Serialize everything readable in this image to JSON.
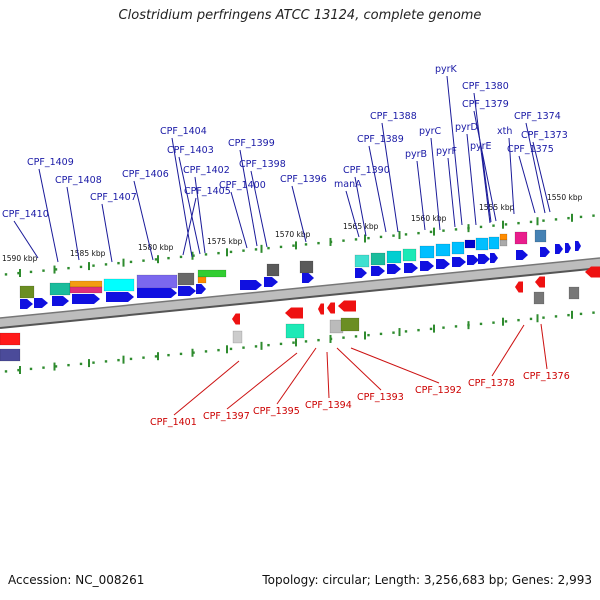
{
  "title": "Clostridium perfringens ATCC 13124, complete genome",
  "footer": {
    "accession": "Accession: NC_008261",
    "summary": "Topology: circular; Length: 3,256,683 bp; Genes: 2,993"
  },
  "colors": {
    "forward_label": "#1a1aa6",
    "reverse_label": "#cc0000",
    "backbone": "#6e6e6e",
    "tick": "#2e8b2e",
    "forward_arrow": "#1010e0",
    "reverse_arrow": "#ee1111"
  },
  "kbp_ticks": [
    "1590 kbp",
    "1585 kbp",
    "1580 kbp",
    "1575 kbp",
    "1570 kbp",
    "1565 kbp",
    "1560 kbp",
    "1555 kbp",
    "1550 kbp"
  ],
  "forward_labels": [
    "CPF_1410",
    "CPF_1409",
    "CPF_1408",
    "CPF_1407",
    "CPF_1406",
    "CPF_1405",
    "CPF_1404",
    "CPF_1403",
    "CPF_1402",
    "CPF_1400",
    "CPF_1399",
    "CPF_1398",
    "CPF_1396",
    "manA",
    "CPF_1390",
    "CPF_1389",
    "CPF_1388",
    "pyrB",
    "pyrC",
    "pyrF",
    "pyrK",
    "pyrD",
    "pyrE",
    "CPF_1380",
    "CPF_1379",
    "xth",
    "CPF_1375",
    "CPF_1374",
    "CPF_1373"
  ],
  "reverse_labels": [
    "CPF_1401",
    "CPF_1397",
    "CPF_1395",
    "CPF_1394",
    "CPF_1393",
    "CPF_1392",
    "CPF_1378",
    "CPF_1376"
  ]
}
